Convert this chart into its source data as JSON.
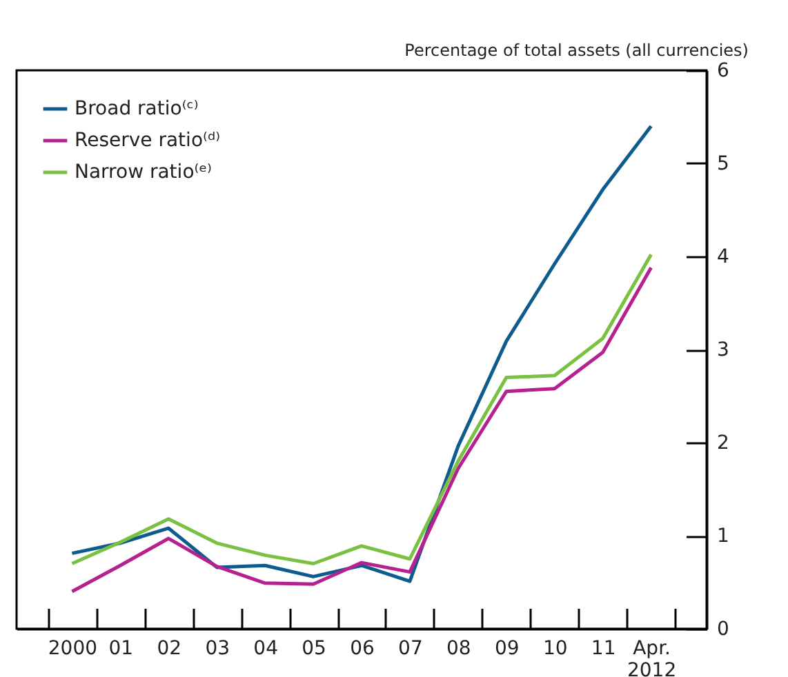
{
  "chart_data": {
    "type": "line",
    "ylabel": "Percentage of total assets (all currencies)",
    "categories": [
      "2000",
      "01",
      "02",
      "03",
      "04",
      "05",
      "06",
      "07",
      "08",
      "09",
      "10",
      "11",
      "Apr. 2012"
    ],
    "series": [
      {
        "name": "Broad ratio⁽ᶜ⁾",
        "color": "#0e5c8e",
        "values": [
          0.81,
          0.92,
          1.08,
          0.66,
          0.68,
          0.56,
          0.68,
          0.51,
          1.96,
          3.09,
          3.92,
          4.72,
          5.4
        ]
      },
      {
        "name": "Reserve ratio⁽ᵈ⁾",
        "color": "#b5218f",
        "values": [
          0.4,
          0.68,
          0.97,
          0.67,
          0.49,
          0.48,
          0.71,
          0.61,
          1.72,
          2.55,
          2.58,
          2.97,
          3.88
        ]
      },
      {
        "name": "Narrow ratio⁽ᵉ⁾",
        "color": "#7ac143",
        "values": [
          0.7,
          0.93,
          1.18,
          0.92,
          0.79,
          0.7,
          0.89,
          0.75,
          1.8,
          2.7,
          2.72,
          3.12,
          4.02
        ]
      }
    ],
    "ylim": [
      0,
      6
    ],
    "yticks": [
      0,
      1,
      2,
      3,
      4,
      5,
      6
    ],
    "legend": "top left",
    "grid": false,
    "marker": "none",
    "line_style": "solid"
  }
}
